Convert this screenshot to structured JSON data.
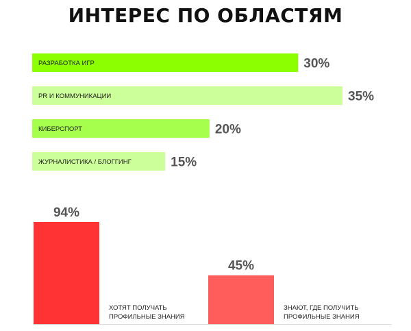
{
  "title": "ИНТЕРЕС ПО ОБЛАСТЯМ",
  "chart_data": [
    {
      "type": "bar",
      "orientation": "horizontal",
      "categories": [
        "РАЗРАБОТКА ИГР",
        "PR И КОММУНИКАЦИИ",
        "КИБЕРСПОРТ",
        "ЖУРНАЛИСТИКА / БЛОГГИНГ"
      ],
      "values": [
        30,
        35,
        20,
        15
      ],
      "value_labels": [
        "30%",
        "35%",
        "20%",
        "15%"
      ],
      "colors": [
        "#8cff00",
        "#ccff99",
        "#a6ff4d",
        "#ccff99"
      ],
      "title": "ИНТЕРЕС ПО ОБЛАСТЯМ",
      "xlabel": "",
      "ylabel": "",
      "xlim": [
        0,
        35
      ],
      "grid": false
    },
    {
      "type": "bar",
      "orientation": "vertical",
      "categories": [
        [
          "ХОТЯТ ПОЛУЧАТЬ",
          "ПРОФИЛЬНЫЕ ЗНАНИЯ"
        ],
        [
          "ЗНАЮТ, ГДЕ ПОЛУЧИТЬ",
          "ПРОФИЛЬНЫЕ ЗНАНИЯ"
        ]
      ],
      "values": [
        94,
        45
      ],
      "value_labels": [
        "94%",
        "45%"
      ],
      "colors": [
        "#ff3333",
        "#ff5c5c"
      ],
      "ylim": [
        0,
        94
      ],
      "grid": false,
      "baseline_color": "#dddddd"
    }
  ]
}
